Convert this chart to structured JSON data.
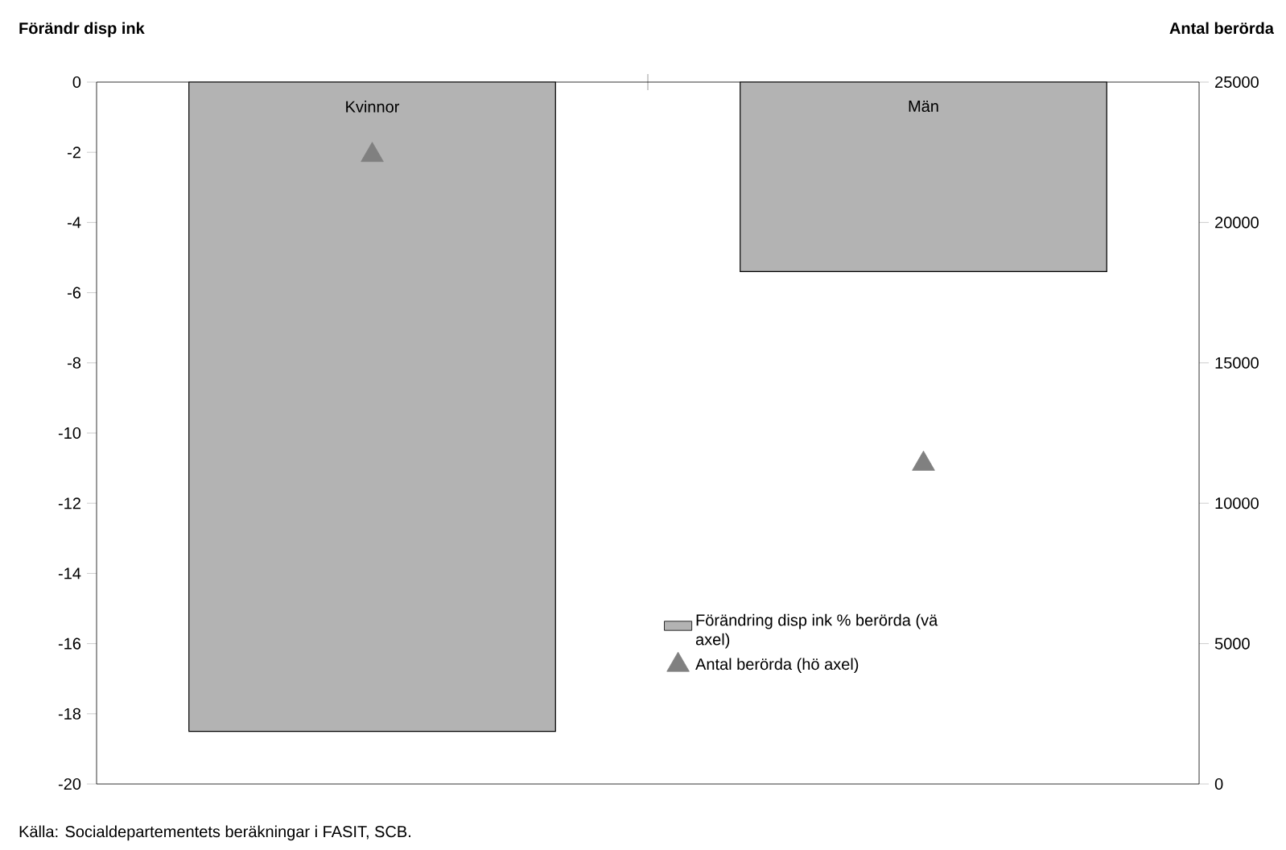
{
  "chart_data": {
    "type": "bar",
    "categories": [
      "Kvinnor",
      "Män"
    ],
    "series": [
      {
        "name": "Förändring disp ink % berörda (vä axel)",
        "color": "#b3b3b3",
        "values": [
          -18.5,
          -5.4
        ]
      },
      {
        "name": "Antal berörda (hö axel)",
        "type": "scatter",
        "axis": "y2",
        "color": "#808080",
        "marker": "triangle",
        "values": [
          22400,
          11400
        ]
      }
    ],
    "ylabel": "Förändr disp ink",
    "y2label": "Antal berörda",
    "ylim": [
      -20,
      0
    ],
    "yticks": [
      -20,
      -18,
      -16,
      -14,
      -12,
      -10,
      -8,
      -6,
      -4,
      -2,
      0
    ],
    "y2lim": [
      0,
      25000
    ],
    "y2ticks": [
      0,
      5000,
      10000,
      15000,
      20000,
      25000
    ],
    "legend": "bottom right",
    "annotations": [
      "Källa: Socialdepartementets beräkningar i FASIT, SCB."
    ]
  }
}
